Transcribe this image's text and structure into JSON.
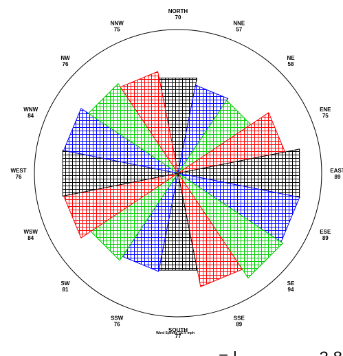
{
  "chart_data": {
    "type": "wind-rose",
    "footnote": "Wind Speeds GE 5 mph",
    "partial_text": "= | — — — – 2 8",
    "pattern_colors": [
      "#000000",
      "#0000ff",
      "#00cc00",
      "#ff0000"
    ],
    "grid": "crosshatch",
    "directions": [
      {
        "name": "NORTH",
        "value": "70",
        "angle": 0,
        "radius": 0.767
      },
      {
        "name": "NNE",
        "value": "57",
        "angle": 22.5,
        "radius": 0.71
      },
      {
        "name": "NE",
        "value": "58",
        "angle": 45,
        "radius": 0.693
      },
      {
        "name": "ENE",
        "value": "75",
        "angle": 67.5,
        "radius": 0.862
      },
      {
        "name": "EAST",
        "value": "89",
        "angle": 90,
        "radius": 0.979
      },
      {
        "name": "ESE",
        "value": "89",
        "angle": 112.5,
        "radius": 0.98
      },
      {
        "name": "SE",
        "value": "94",
        "angle": 135,
        "radius": 0.997
      },
      {
        "name": "SSE",
        "value": "89",
        "angle": 157.5,
        "radius": 0.915
      },
      {
        "name": "SOUTH",
        "value": "77",
        "angle": 180,
        "radius": 0.782
      },
      {
        "name": "SSW",
        "value": "76",
        "angle": 202.5,
        "radius": 0.792
      },
      {
        "name": "SW",
        "value": "81",
        "angle": 225,
        "radius": 0.83
      },
      {
        "name": "WSW",
        "value": "84",
        "angle": 247.5,
        "radius": 0.922
      },
      {
        "name": "WEST",
        "value": "76",
        "angle": 270,
        "radius": 0.93
      },
      {
        "name": "WNW",
        "value": "84",
        "angle": 292.5,
        "radius": 0.922
      },
      {
        "name": "NW",
        "value": "76",
        "angle": 315,
        "radius": 0.852
      },
      {
        "name": "NNW",
        "value": "75",
        "angle": 337.5,
        "radius": 0.82
      }
    ]
  }
}
